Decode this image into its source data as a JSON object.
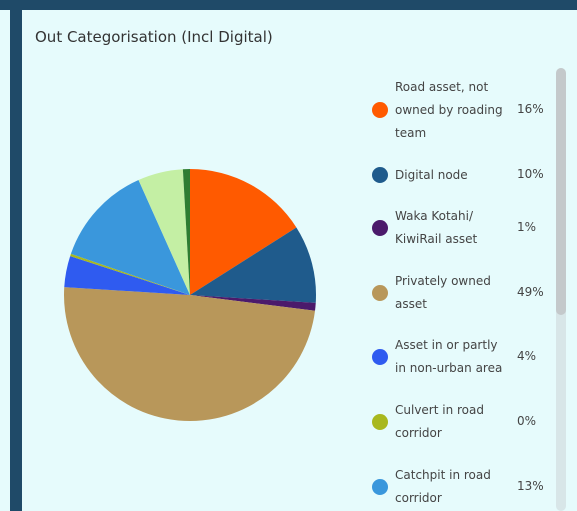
{
  "chart_data": {
    "type": "pie",
    "title": "Out Categorisation (Incl Digital)",
    "categories": [
      "Road asset, not owned by roading team",
      "Digital node",
      "Waka Kotahi/ KiwiRail asset",
      "Privately owned asset",
      "Asset in or partly in non-urban area",
      "Culvert in road corridor",
      "Catchpit in road corridor",
      null,
      null
    ],
    "values": [
      16,
      10,
      1,
      49,
      4,
      0.3,
      13,
      5.8,
      0.9
    ],
    "value_labels": [
      "16%",
      "10%",
      "1%",
      "49%",
      "4%",
      "0%",
      "13%",
      null,
      null
    ],
    "colors": [
      "#ff5a00",
      "#1f5b8c",
      "#4b1a6b",
      "#b8975a",
      "#2f5bf0",
      "#a8b81e",
      "#3a97dc",
      "#c4efa4",
      "#2e7d32"
    ]
  }
}
